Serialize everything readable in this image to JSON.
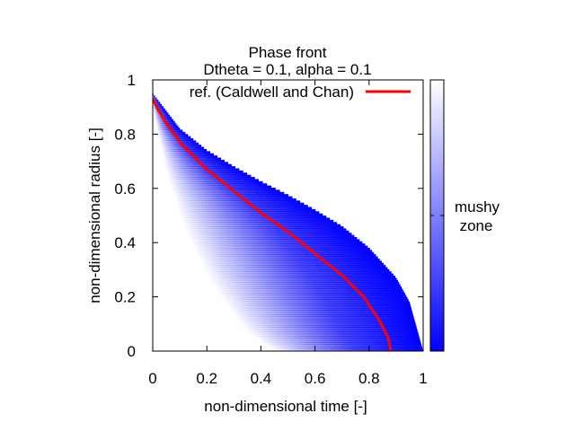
{
  "chart_data": {
    "type": "heatmap",
    "title": "Phase front",
    "subtitle": "Dtheta = 0.1, alpha = 0.1",
    "xlabel": "non-dimensional time [-]",
    "ylabel": "non-dimensional radius [-]",
    "xlim": [
      0,
      1
    ],
    "ylim": [
      0,
      1
    ],
    "xticks": [
      "0",
      "0.2",
      "0.4",
      "0.6",
      "0.8",
      "1"
    ],
    "yticks": [
      "0",
      "0.2",
      "0.4",
      "0.6",
      "0.8",
      "1"
    ],
    "grid": false,
    "legend_position": "top-right",
    "colorbar": {
      "label_line1": "mushy",
      "label_line2": "zone",
      "low_color": "#0000ff",
      "high_color": "#ffffff"
    },
    "colors": {
      "zone": "#0000ff",
      "reference": "#ff0000"
    },
    "series": [
      {
        "name": "ref. (Caldwell and Chan)",
        "x": [
          0.0,
          0.02,
          0.05,
          0.08,
          0.1,
          0.15,
          0.2,
          0.25,
          0.3,
          0.35,
          0.4,
          0.45,
          0.5,
          0.55,
          0.6,
          0.65,
          0.7,
          0.75,
          0.78,
          0.8,
          0.82,
          0.84,
          0.85,
          0.86,
          0.87,
          0.875,
          0.88
        ],
        "y": [
          0.93,
          0.89,
          0.84,
          0.8,
          0.77,
          0.72,
          0.67,
          0.63,
          0.59,
          0.55,
          0.51,
          0.475,
          0.44,
          0.4,
          0.36,
          0.32,
          0.28,
          0.23,
          0.2,
          0.17,
          0.14,
          0.11,
          0.09,
          0.07,
          0.05,
          0.03,
          0.0
        ]
      }
    ],
    "mushy_zone": {
      "outer_edge": {
        "x": [
          0.0,
          0.1,
          0.2,
          0.3,
          0.4,
          0.5,
          0.6,
          0.7,
          0.8,
          0.9,
          0.95,
          1.0
        ],
        "y": [
          0.95,
          0.82,
          0.74,
          0.68,
          0.625,
          0.575,
          0.52,
          0.46,
          0.38,
          0.27,
          0.18,
          0.0
        ]
      },
      "inner_edge": {
        "x": [
          0.0,
          0.05,
          0.1,
          0.15,
          0.2,
          0.25,
          0.3,
          0.35,
          0.4,
          0.45
        ],
        "y": [
          0.9,
          0.66,
          0.5,
          0.38,
          0.28,
          0.2,
          0.13,
          0.07,
          0.03,
          0.0
        ]
      }
    }
  }
}
